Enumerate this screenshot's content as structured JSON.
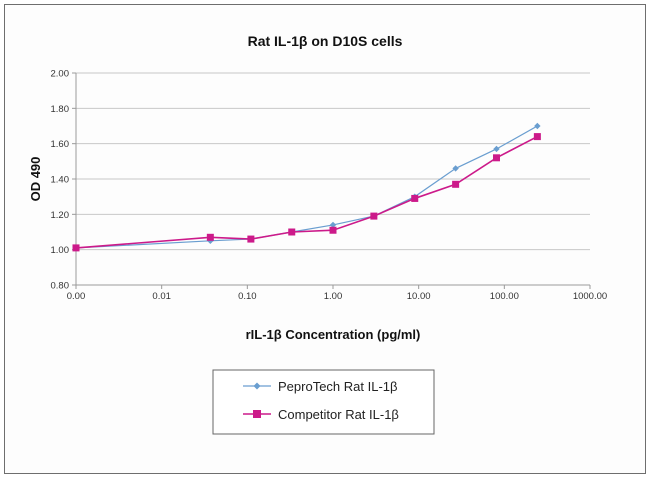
{
  "chart_data": {
    "type": "line",
    "title": "Rat IL-1β on D10S cells",
    "xlabel": "rIL-1β Concentration (pg/ml)",
    "ylabel": "OD 490",
    "xscale": "log",
    "xlim": [
      0.001,
      1000
    ],
    "ylim": [
      0.8,
      2.0
    ],
    "xticks": [
      0.001,
      0.01,
      0.1,
      1,
      10,
      100,
      1000
    ],
    "xtick_labels": [
      "0.00",
      "0.01",
      "0.10",
      "1.00",
      "10.00",
      "100.00",
      "1000.00"
    ],
    "yticks": [
      0.8,
      1.0,
      1.2,
      1.4,
      1.6,
      1.8,
      2.0
    ],
    "ytick_labels": [
      "0.80",
      "1.00",
      "1.20",
      "1.40",
      "1.60",
      "1.80",
      "2.00"
    ],
    "grid": "horizontal",
    "legend_position": "bottom-center",
    "x": [
      0.001,
      0.037,
      0.11,
      0.33,
      1.0,
      3.0,
      9.0,
      27,
      81,
      243
    ],
    "series": [
      {
        "name": "PeproTech Rat IL-1β",
        "color": "#6a9ed0",
        "marker": "diamond",
        "values": [
          1.01,
          1.05,
          1.06,
          1.1,
          1.14,
          1.19,
          1.3,
          1.46,
          1.57,
          1.7
        ]
      },
      {
        "name": "Competitor Rat IL-1β",
        "color": "#cc1a8a",
        "marker": "square",
        "values": [
          1.01,
          1.07,
          1.06,
          1.1,
          1.11,
          1.19,
          1.29,
          1.37,
          1.52,
          1.64
        ]
      }
    ]
  }
}
